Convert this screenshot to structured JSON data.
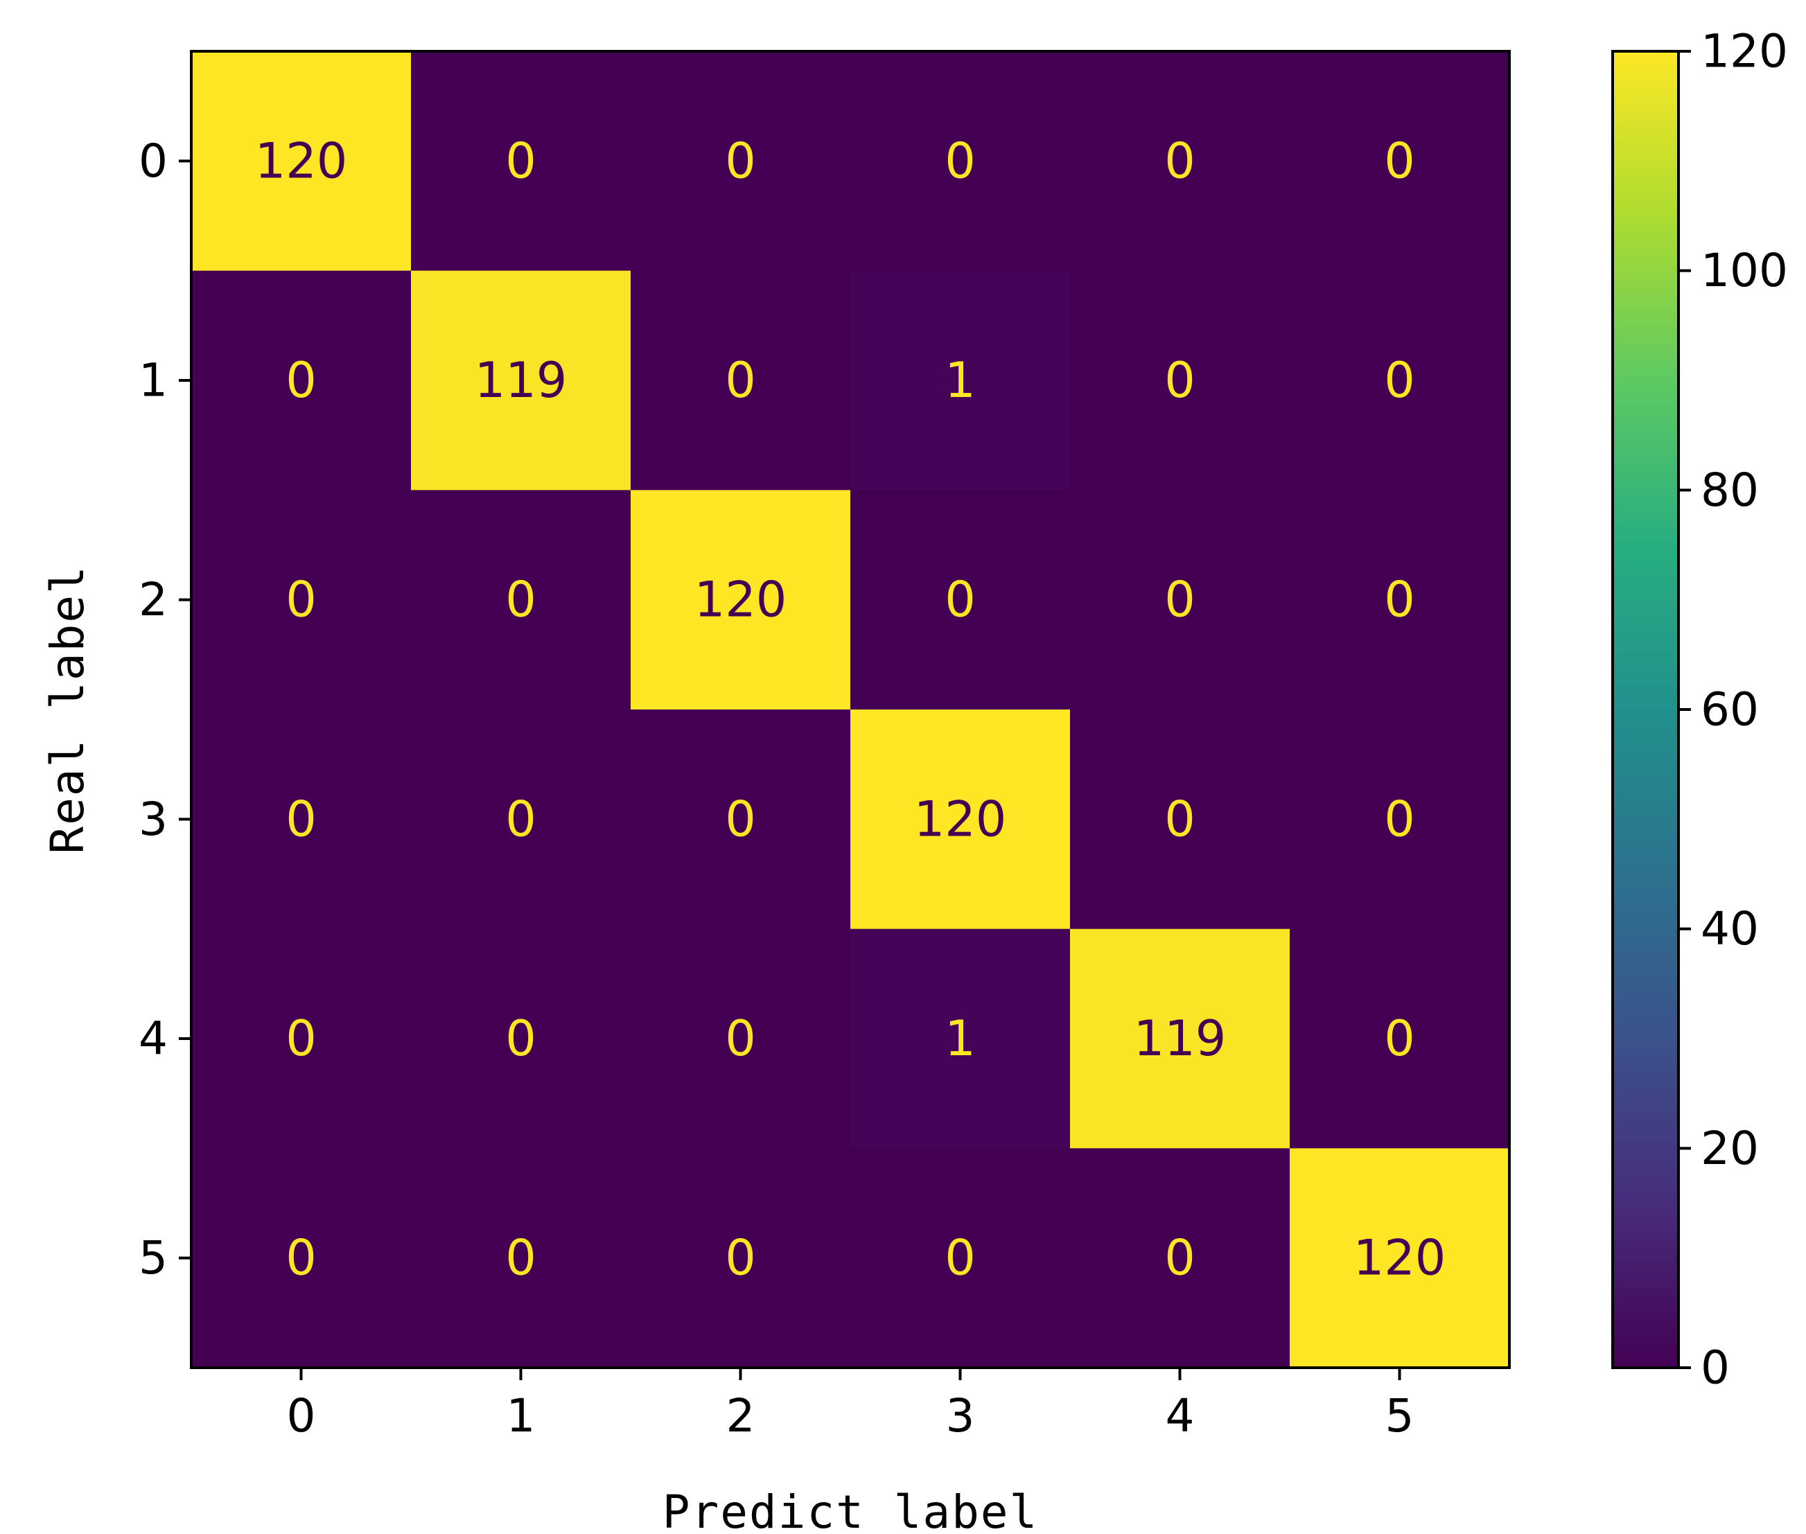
{
  "chart_data": {
    "type": "heatmap",
    "title": "",
    "xlabel": "Predict label",
    "ylabel": "Real label",
    "x_categories": [
      "0",
      "1",
      "2",
      "3",
      "4",
      "5"
    ],
    "y_categories": [
      "0",
      "1",
      "2",
      "3",
      "4",
      "5"
    ],
    "values": [
      [
        120,
        0,
        0,
        0,
        0,
        0
      ],
      [
        0,
        119,
        0,
        1,
        0,
        0
      ],
      [
        0,
        0,
        120,
        0,
        0,
        0
      ],
      [
        0,
        0,
        0,
        120,
        0,
        0
      ],
      [
        0,
        0,
        0,
        1,
        119,
        0
      ],
      [
        0,
        0,
        0,
        0,
        0,
        120
      ]
    ],
    "colormap": "viridis",
    "vmin": 0,
    "vmax": 120,
    "colorbar": {
      "ticks": [
        0,
        20,
        40,
        60,
        80,
        100,
        120
      ],
      "tick_labels": [
        "0",
        "20",
        "40",
        "60",
        "80",
        "100",
        "120"
      ],
      "placement": "right"
    },
    "grid": false,
    "text_colors": {
      "high": "#440154",
      "low": "#fde725"
    }
  }
}
